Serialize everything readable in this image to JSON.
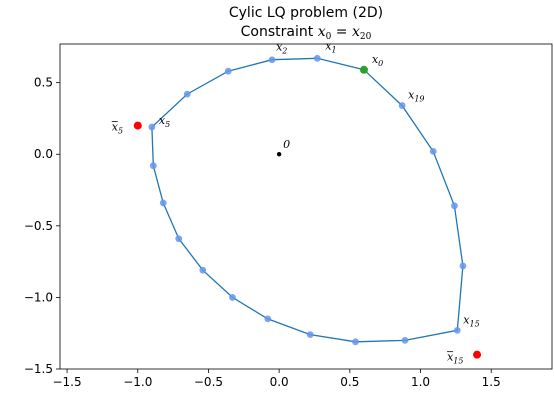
{
  "chart_data": {
    "type": "scatter",
    "title_line1": "Cylic LQ problem (2D)",
    "title_line2": "Constraint x0 = x20",
    "xlabel": "",
    "ylabel": "",
    "xlim": [
      -1.55,
      1.93
    ],
    "ylim": [
      -1.5,
      0.77
    ],
    "xticks": [
      -1.5,
      -1.0,
      -0.5,
      0.0,
      0.5,
      1.0,
      1.5
    ],
    "xtick_labels": [
      "−1.5",
      "−1.0",
      "−0.5",
      "0.0",
      "0.5",
      "1.0",
      "1.5"
    ],
    "yticks": [
      -1.5,
      -1.0,
      -0.5,
      0.0,
      0.5
    ],
    "ytick_labels": [
      "−1.5",
      "−1.0",
      "−0.5",
      "0.0",
      "0.5"
    ],
    "grid": false,
    "colors": {
      "path": "#1f77b4",
      "points": "#6495ed",
      "start": "#2ca02c",
      "target": "#ff0000",
      "origin": "#000000"
    },
    "trajectory": {
      "x": [
        0.6,
        0.27,
        -0.05,
        -0.36,
        -0.65,
        -0.9,
        -0.89,
        -0.82,
        -0.71,
        -0.54,
        -0.33,
        -0.08,
        0.22,
        0.54,
        0.89,
        1.26,
        1.3,
        1.24,
        1.09,
        0.87,
        0.6
      ],
      "y": [
        0.59,
        0.67,
        0.66,
        0.58,
        0.42,
        0.19,
        -0.08,
        -0.34,
        -0.59,
        -0.81,
        -1.0,
        -1.15,
        -1.26,
        -1.31,
        -1.3,
        -1.23,
        -0.78,
        -0.36,
        0.02,
        0.34,
        0.59
      ]
    },
    "special_points": [
      {
        "name": "start",
        "x": 0.6,
        "y": 0.59
      },
      {
        "name": "xbar5",
        "x": -1.0,
        "y": 0.2
      },
      {
        "name": "xbar15",
        "x": 1.4,
        "y": -1.4
      },
      {
        "name": "origin",
        "x": 0.0,
        "y": 0.0
      }
    ],
    "annotations": [
      {
        "id": "x0",
        "base": "x",
        "sub": "0",
        "bar": false,
        "x": 0.6,
        "y": 0.59
      },
      {
        "id": "x1",
        "base": "x",
        "sub": "1",
        "bar": false,
        "x": 0.27,
        "y": 0.67
      },
      {
        "id": "x2",
        "base": "x",
        "sub": "2",
        "bar": false,
        "x": -0.05,
        "y": 0.66
      },
      {
        "id": "x5",
        "base": "x",
        "sub": "5",
        "bar": false,
        "x": -0.9,
        "y": 0.19
      },
      {
        "id": "x15",
        "base": "x",
        "sub": "15",
        "bar": false,
        "x": 1.26,
        "y": -1.23
      },
      {
        "id": "x19",
        "base": "x",
        "sub": "19",
        "bar": false,
        "x": 0.87,
        "y": 0.34
      },
      {
        "id": "xb5",
        "base": "x",
        "sub": "5",
        "bar": true,
        "x": -1.0,
        "y": 0.2
      },
      {
        "id": "xb15",
        "base": "x",
        "sub": "15",
        "bar": true,
        "x": 1.4,
        "y": -1.4
      },
      {
        "id": "o",
        "text": "0",
        "x": 0.0,
        "y": 0.0
      }
    ]
  }
}
